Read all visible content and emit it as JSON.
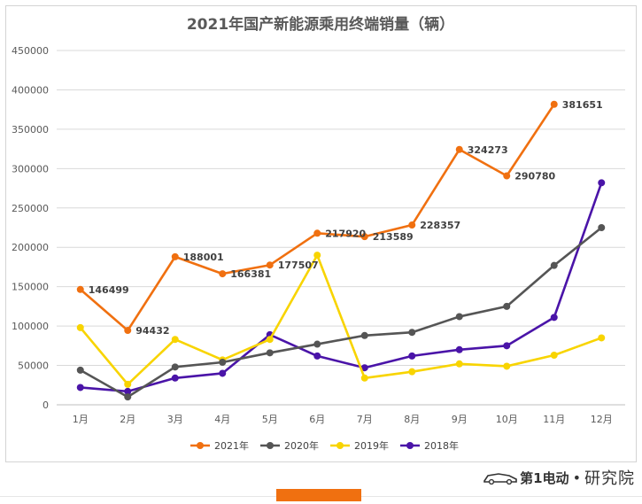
{
  "chart_data": {
    "type": "line",
    "title": "2021年国产新能源乘用终端销量（辆）",
    "xlabel": "",
    "ylabel": "",
    "categories": [
      "1月",
      "2月",
      "3月",
      "4月",
      "5月",
      "6月",
      "7月",
      "8月",
      "9月",
      "10月",
      "11月",
      "12月"
    ],
    "ylim": [
      0,
      450000
    ],
    "yticks": [
      "0",
      "50000",
      "100000",
      "150000",
      "200000",
      "250000",
      "300000",
      "350000",
      "400000",
      "450000"
    ],
    "grid": true,
    "legend_position": "bottom",
    "series": [
      {
        "name": "2021年",
        "color": "#f07010",
        "values": [
          146499,
          94432,
          188001,
          166381,
          177507,
          217920,
          213589,
          228357,
          324273,
          290780,
          381651,
          null
        ],
        "labels": [
          "146499",
          "94432",
          "188001",
          "166381",
          "177507",
          "217920",
          "213589",
          "228357",
          "324273",
          "290780",
          "381651",
          ""
        ]
      },
      {
        "name": "2020年",
        "color": "#555555",
        "values": [
          44000,
          10000,
          48000,
          54000,
          66000,
          77000,
          88000,
          92000,
          112000,
          125000,
          177000,
          225000
        ]
      },
      {
        "name": "2019年",
        "color": "#f8d400",
        "values": [
          98000,
          26000,
          83000,
          57000,
          83000,
          190000,
          34000,
          42000,
          52000,
          49000,
          63000,
          85000
        ]
      },
      {
        "name": "2018年",
        "color": "#4a14a8",
        "values": [
          22000,
          17000,
          34000,
          40000,
          89000,
          62000,
          47000,
          62000,
          70000,
          75000,
          111000,
          282000
        ]
      }
    ]
  },
  "colors": {
    "accent": "#f07010",
    "grid": "#d9d9d9",
    "axis_text": "#595959",
    "title": "#595959"
  },
  "brand": {
    "logo_text": "第1电动",
    "dot": "•",
    "suffix": "研究院"
  }
}
